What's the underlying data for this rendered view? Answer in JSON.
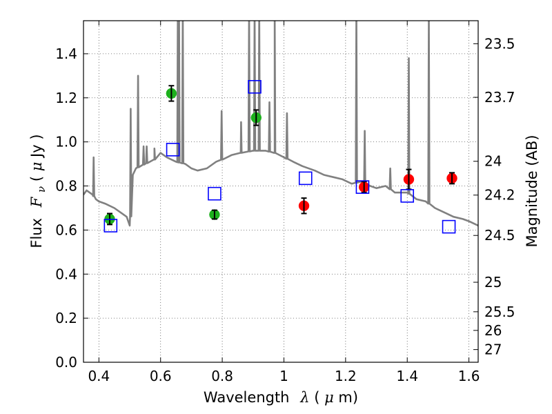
{
  "chart_data": {
    "type": "scatter",
    "xlabel": {
      "prefix": "Wavelength",
      "symbol": "λ",
      "unit_open": " (",
      "unit_mu": "μ",
      "unit_rest": "m)"
    },
    "ylabel": {
      "prefix": "Flux",
      "symbol": "F",
      "sub": "ν",
      "unit_open": " ( ",
      "unit_mu": "μ",
      "unit_rest": "Jy )"
    },
    "ylabel_right": "Magnitude (AB)",
    "xlim": [
      0.35,
      1.63
    ],
    "ylim": [
      0.0,
      1.55
    ],
    "grid": true,
    "x_ticks": [
      {
        "value": 0.4,
        "label": "0.4"
      },
      {
        "value": 0.6,
        "label": "0.6"
      },
      {
        "value": 0.8,
        "label": "0.8"
      },
      {
        "value": 1.0,
        "label": "1"
      },
      {
        "value": 1.2,
        "label": "1.2"
      },
      {
        "value": 1.4,
        "label": "1.4"
      },
      {
        "value": 1.6,
        "label": "1.6"
      }
    ],
    "y_ticks": [
      {
        "value": 0.0,
        "label": "0.0"
      },
      {
        "value": 0.2,
        "label": "0.2"
      },
      {
        "value": 0.4,
        "label": "0.4"
      },
      {
        "value": 0.6,
        "label": "0.6"
      },
      {
        "value": 0.8,
        "label": "0.8"
      },
      {
        "value": 1.0,
        "label": "1.0"
      },
      {
        "value": 1.2,
        "label": "1.2"
      },
      {
        "value": 1.4,
        "label": "1.4"
      }
    ],
    "mag_ticks": [
      {
        "label": "23.5",
        "mag": 23.5
      },
      {
        "label": "23.7",
        "mag": 23.7
      },
      {
        "label": "24",
        "mag": 24.0
      },
      {
        "label": "24.2",
        "mag": 24.2
      },
      {
        "label": "24.5",
        "mag": 24.5
      },
      {
        "label": "25",
        "mag": 25.0
      },
      {
        "label": "25.5",
        "mag": 25.5
      },
      {
        "label": "26",
        "mag": 26.0
      },
      {
        "label": "27",
        "mag": 27.0
      }
    ],
    "series": [
      {
        "style": "filled-circle",
        "color": "#1db01d",
        "points": [
          {
            "x": 0.435,
            "y": 0.65,
            "err": 0.025
          },
          {
            "x": 0.635,
            "y": 1.22,
            "err": 0.035
          },
          {
            "x": 0.775,
            "y": 0.67,
            "err": 0.02
          },
          {
            "x": 0.91,
            "y": 1.11,
            "err": 0.035
          }
        ]
      },
      {
        "style": "filled-circle",
        "color": "#ff0000",
        "points": [
          {
            "x": 1.065,
            "y": 0.71,
            "err": 0.035
          },
          {
            "x": 1.26,
            "y": 0.795,
            "err": 0.025
          },
          {
            "x": 1.405,
            "y": 0.83,
            "err": 0.045
          },
          {
            "x": 1.545,
            "y": 0.835,
            "err": 0.025
          }
        ]
      },
      {
        "style": "open-square",
        "color": "#0000ff",
        "points": [
          {
            "x": 0.438,
            "y": 0.62
          },
          {
            "x": 0.64,
            "y": 0.965
          },
          {
            "x": 0.775,
            "y": 0.765
          },
          {
            "x": 0.905,
            "y": 1.25
          },
          {
            "x": 1.07,
            "y": 0.835
          },
          {
            "x": 1.255,
            "y": 0.795
          },
          {
            "x": 1.4,
            "y": 0.755
          },
          {
            "x": 1.535,
            "y": 0.615
          }
        ]
      }
    ],
    "spectrum": {
      "color": "#808080",
      "continuum": [
        [
          0.35,
          0.76
        ],
        [
          0.36,
          0.78
        ],
        [
          0.37,
          0.77
        ],
        [
          0.38,
          0.76
        ],
        [
          0.39,
          0.74
        ],
        [
          0.4,
          0.73
        ],
        [
          0.42,
          0.72
        ],
        [
          0.45,
          0.7
        ],
        [
          0.47,
          0.68
        ],
        [
          0.49,
          0.66
        ],
        [
          0.5,
          0.62
        ],
        [
          0.505,
          0.69
        ],
        [
          0.51,
          0.85
        ],
        [
          0.52,
          0.88
        ],
        [
          0.55,
          0.9
        ],
        [
          0.58,
          0.92
        ],
        [
          0.6,
          0.95
        ],
        [
          0.62,
          0.93
        ],
        [
          0.65,
          0.91
        ],
        [
          0.68,
          0.9
        ],
        [
          0.7,
          0.88
        ],
        [
          0.72,
          0.87
        ],
        [
          0.75,
          0.88
        ],
        [
          0.78,
          0.91
        ],
        [
          0.8,
          0.92
        ],
        [
          0.83,
          0.94
        ],
        [
          0.86,
          0.95
        ],
        [
          0.9,
          0.96
        ],
        [
          0.94,
          0.96
        ],
        [
          0.97,
          0.95
        ],
        [
          1.0,
          0.93
        ],
        [
          1.03,
          0.91
        ],
        [
          1.06,
          0.89
        ],
        [
          1.1,
          0.87
        ],
        [
          1.13,
          0.85
        ],
        [
          1.16,
          0.84
        ],
        [
          1.19,
          0.83
        ],
        [
          1.22,
          0.81
        ],
        [
          1.25,
          0.82
        ],
        [
          1.28,
          0.8
        ],
        [
          1.3,
          0.79
        ],
        [
          1.33,
          0.8
        ],
        [
          1.36,
          0.77
        ],
        [
          1.4,
          0.77
        ],
        [
          1.43,
          0.74
        ],
        [
          1.46,
          0.73
        ],
        [
          1.49,
          0.7
        ],
        [
          1.52,
          0.68
        ],
        [
          1.55,
          0.66
        ],
        [
          1.58,
          0.65
        ],
        [
          1.6,
          0.64
        ],
        [
          1.63,
          0.62
        ]
      ],
      "lines": [
        {
          "x": 0.383,
          "peak": 0.93
        },
        {
          "x": 0.503,
          "peak": 1.15
        },
        {
          "x": 0.527,
          "peak": 1.3
        },
        {
          "x": 0.545,
          "peak": 0.98
        },
        {
          "x": 0.555,
          "peak": 0.98
        },
        {
          "x": 0.58,
          "peak": 0.97
        },
        {
          "x": 0.656,
          "peak": 1.6
        },
        {
          "x": 0.66,
          "peak": 1.6
        },
        {
          "x": 0.672,
          "peak": 1.6
        },
        {
          "x": 0.798,
          "peak": 1.14
        },
        {
          "x": 0.861,
          "peak": 1.09
        },
        {
          "x": 0.887,
          "peak": 1.6
        },
        {
          "x": 0.905,
          "peak": 1.6
        },
        {
          "x": 0.92,
          "peak": 1.6
        },
        {
          "x": 0.953,
          "peak": 1.18
        },
        {
          "x": 0.97,
          "peak": 1.6
        },
        {
          "x": 1.01,
          "peak": 1.13
        },
        {
          "x": 1.235,
          "peak": 1.6
        },
        {
          "x": 1.262,
          "peak": 1.05
        },
        {
          "x": 1.345,
          "peak": 0.88
        },
        {
          "x": 1.405,
          "peak": 1.38
        },
        {
          "x": 1.47,
          "peak": 1.6
        }
      ]
    }
  }
}
